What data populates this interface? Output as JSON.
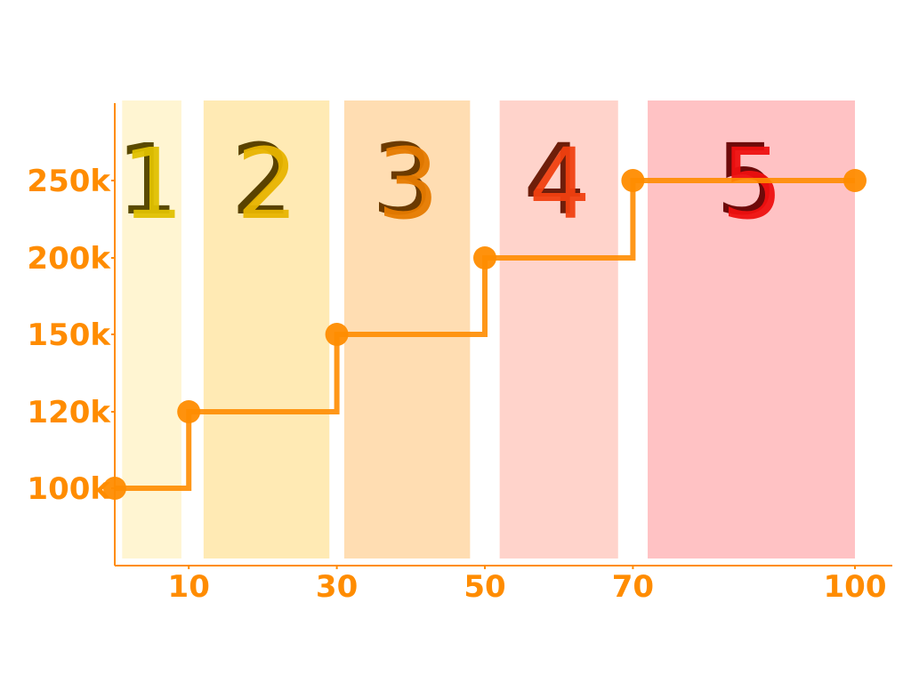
{
  "chart_data": {
    "type": "line",
    "step": "post",
    "x": [
      0,
      10,
      30,
      50,
      70,
      100
    ],
    "x_tick_positions": [
      10,
      30,
      50,
      70,
      100
    ],
    "x_tick_labels": [
      "10",
      "30",
      "50",
      "70",
      "100"
    ],
    "y_tick_labels": [
      "100k",
      "120k",
      "150k",
      "200k",
      "250k"
    ],
    "y_labels_for_points": [
      "100k",
      "120k",
      "150k",
      "200k",
      "250k",
      "250k"
    ],
    "series": [
      {
        "values": [
          "100k",
          "120k",
          "150k",
          "200k",
          "250k",
          "250k"
        ],
        "color": "#ff8c00"
      }
    ],
    "bands": [
      {
        "label": "1",
        "from": 1,
        "to": 9,
        "color": "#fff5d2",
        "text_color": "#e0c000",
        "shadow_color": "#5a4a00"
      },
      {
        "label": "2",
        "from": 12,
        "to": 29,
        "color": "#ffeab4",
        "text_color": "#e8b400",
        "shadow_color": "#5a4200"
      },
      {
        "label": "3",
        "from": 31,
        "to": 48,
        "color": "#ffddb2",
        "text_color": "#e67a00",
        "shadow_color": "#6b3a00"
      },
      {
        "label": "4",
        "from": 52,
        "to": 68,
        "color": "#ffd3cb",
        "text_color": "#f04010",
        "shadow_color": "#6e1e0a"
      },
      {
        "label": "5",
        "from": 72,
        "to": 100,
        "color": "#ffc2c4",
        "text_color": "#ee1010",
        "shadow_color": "#6e0a0a"
      }
    ],
    "xlim": [
      0,
      105
    ],
    "axis_color": "#ff8c00",
    "tick_label_color": "#ff8c00",
    "title": "",
    "xlabel": "",
    "ylabel": "",
    "grid": false,
    "legend": "none"
  }
}
